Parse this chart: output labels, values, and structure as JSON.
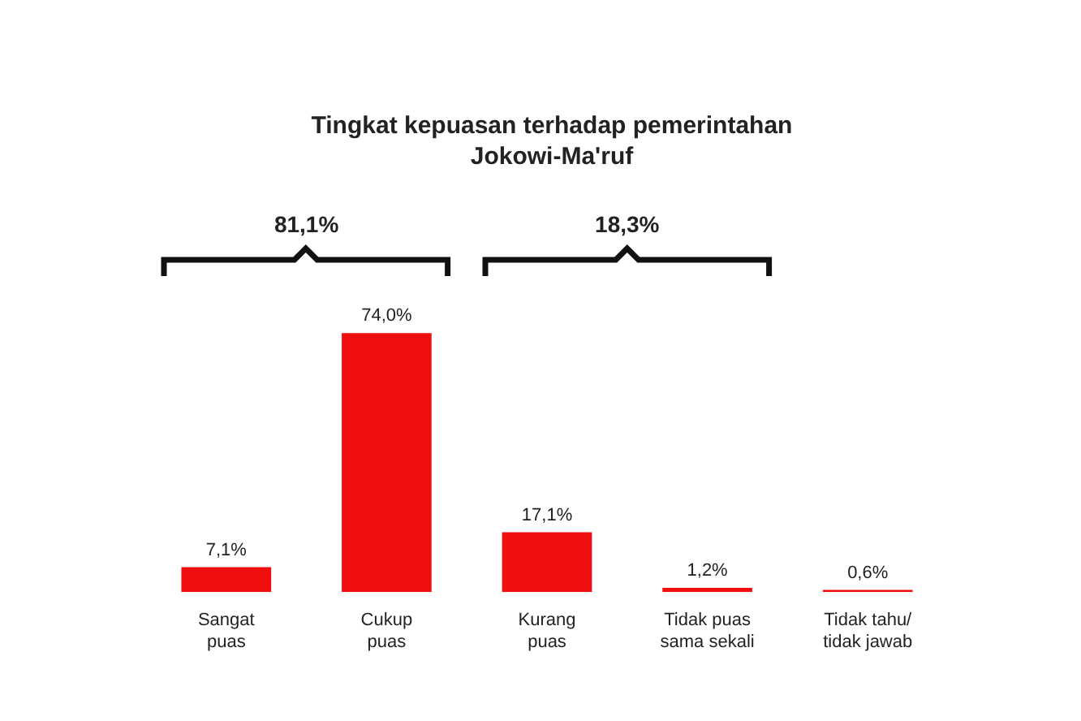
{
  "chart_data": {
    "type": "bar",
    "title": "Tingkat kepuasan terhadap pemerintahan\nJokowi-Ma'ruf",
    "categories": [
      "Sangat\npuas",
      "Cukup\npuas",
      "Kurang\npuas",
      "Tidak puas\nsama sekali",
      "Tidak tahu/\ntidak jawab"
    ],
    "values": [
      7.1,
      74.0,
      17.1,
      1.2,
      0.6
    ],
    "value_labels": [
      "7,1%",
      "74,0%",
      "17,1%",
      "1,2%",
      "0,6%"
    ],
    "color": "#f00f0f",
    "annotations": [
      "81,1%",
      "18,3%"
    ],
    "grid": false,
    "legend": false
  }
}
